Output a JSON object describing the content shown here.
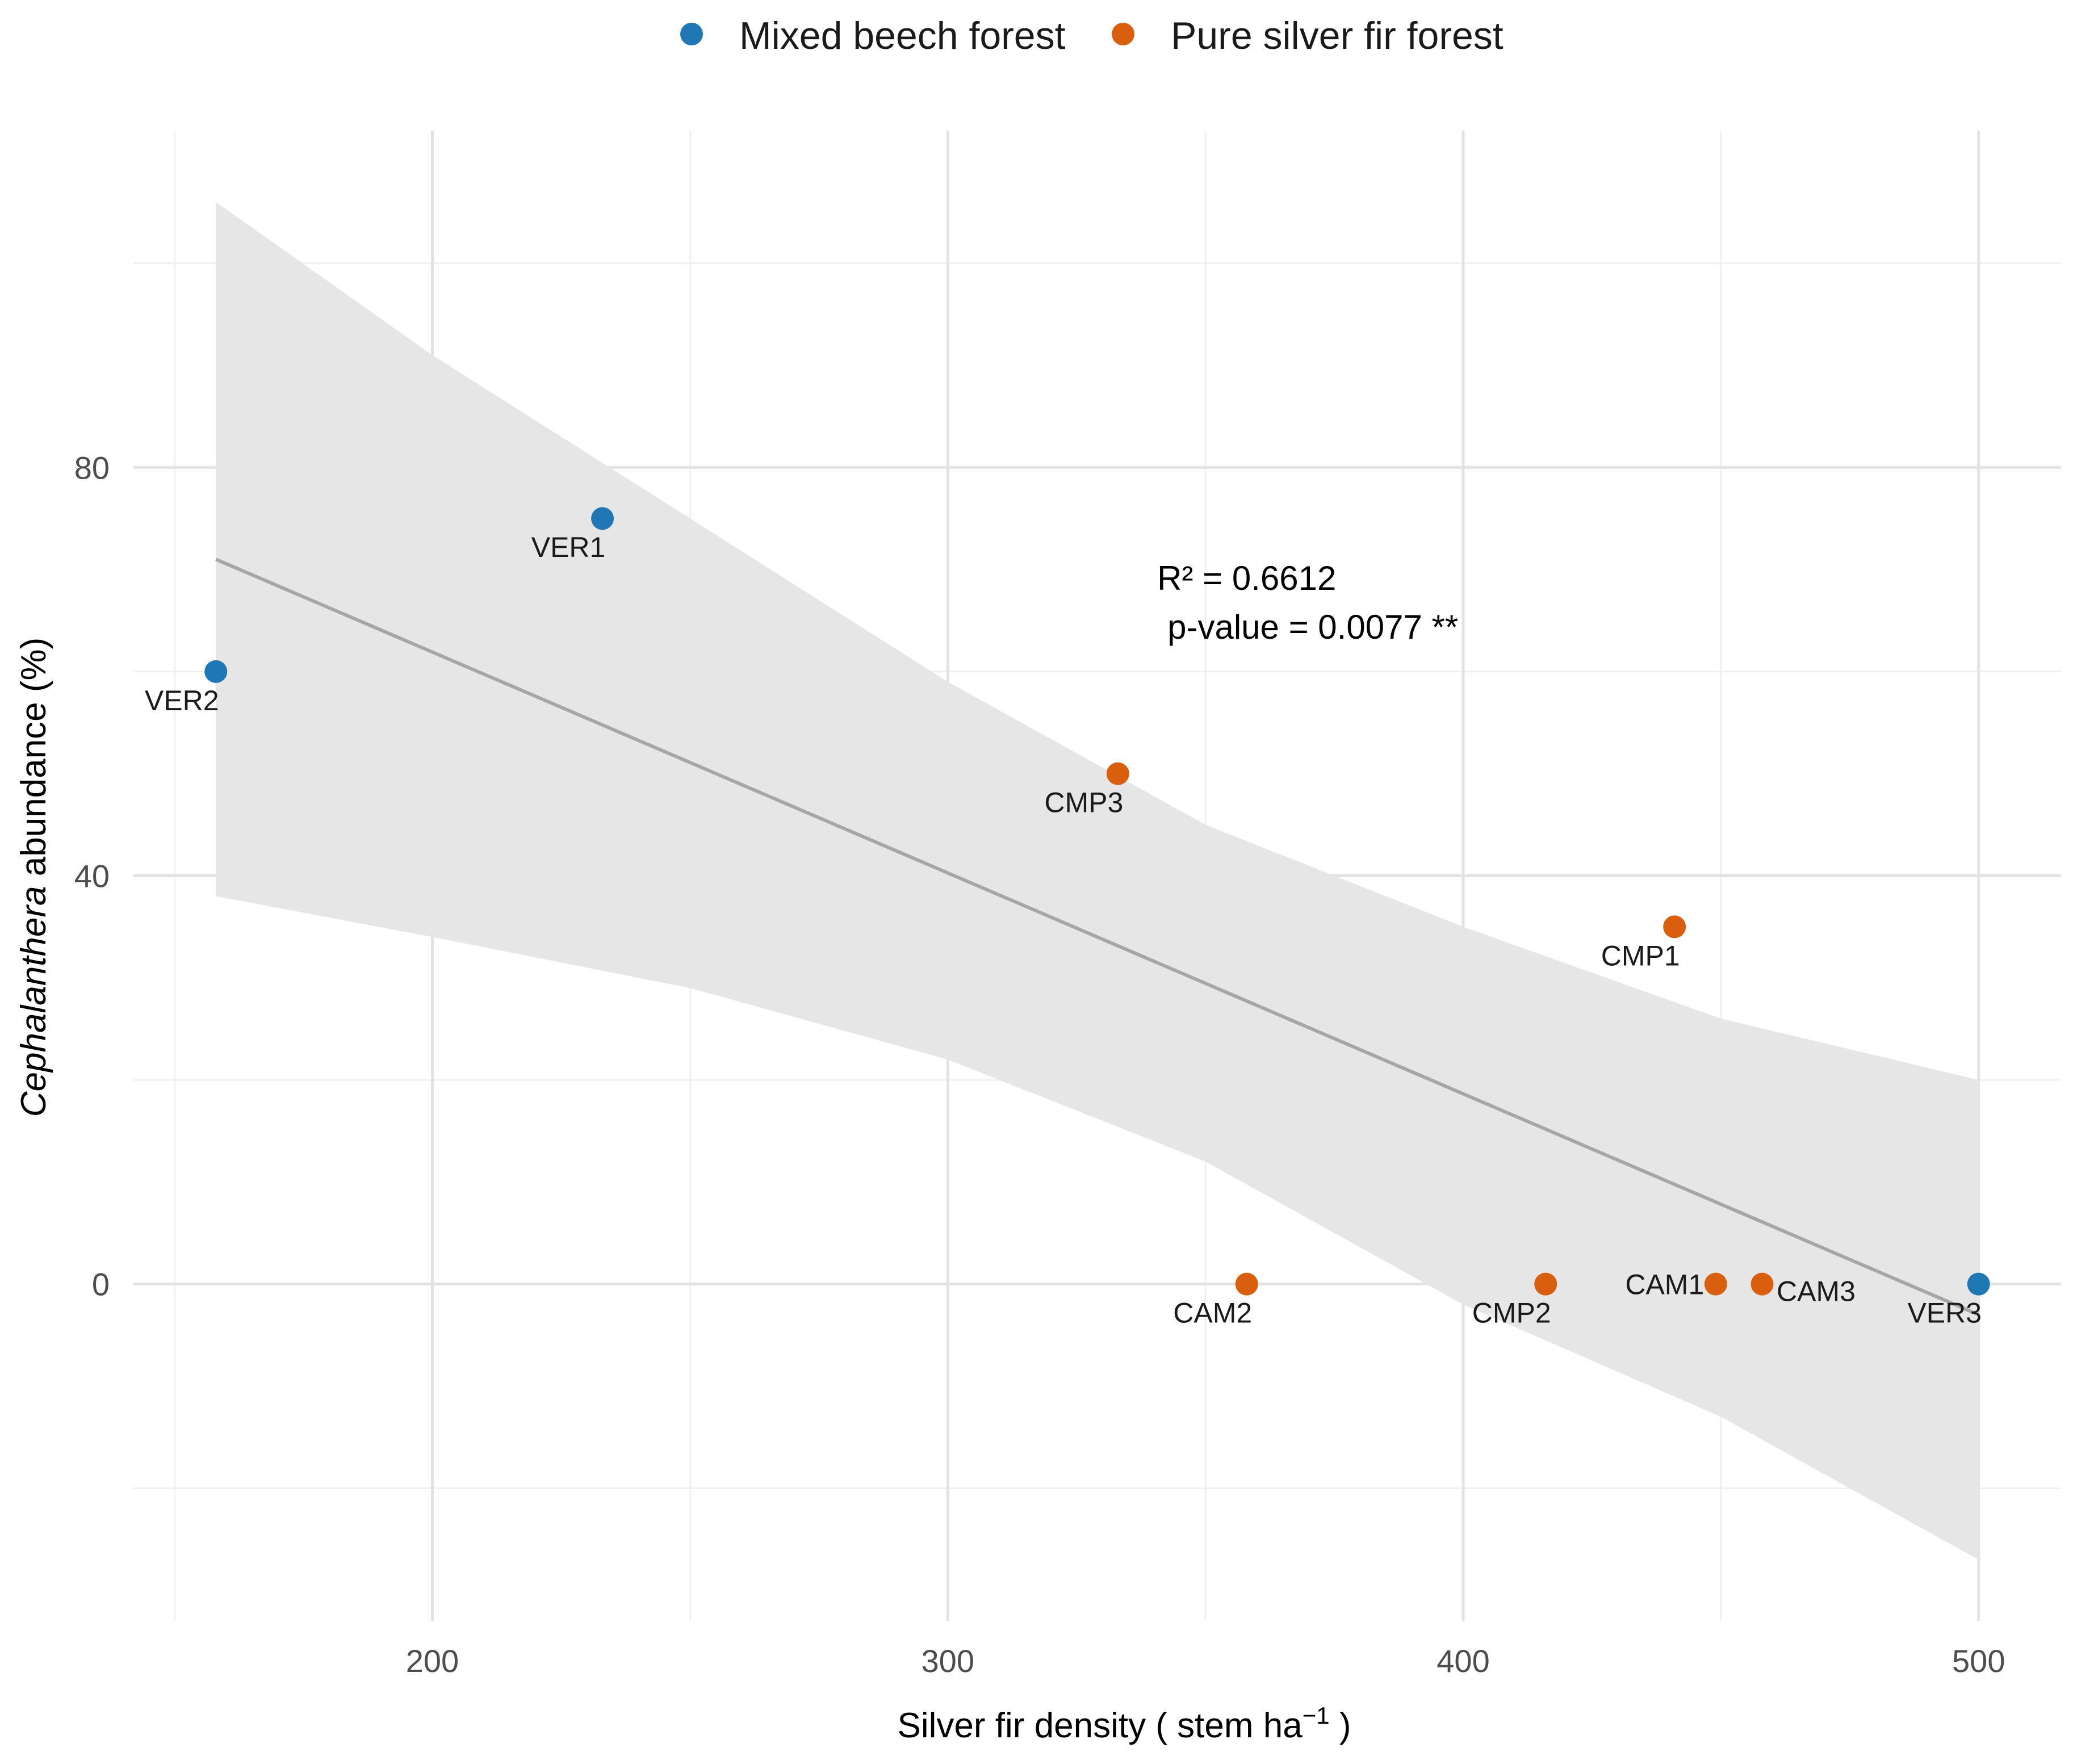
{
  "chart_data": {
    "type": "scatter",
    "xlabel": {
      "main": "Silver fir density ( stem ha",
      "sup": "−1",
      "tail": " )"
    },
    "ylabel": {
      "italic": "Cephalanthera",
      "rest": " abundance (%)"
    },
    "xlim": [
      142,
      516
    ],
    "ylim": [
      -33,
      113
    ],
    "x_ticks": [
      200,
      300,
      400,
      500
    ],
    "y_ticks": [
      0,
      40,
      80
    ],
    "x_minor": [
      150,
      250,
      350,
      450
    ],
    "y_minor": [
      -20,
      20,
      60,
      100
    ],
    "grid": true,
    "legend_position": "top",
    "series": [
      {
        "name": "Mixed beech forest",
        "color": "#1f78b4",
        "points": [
          {
            "label": "VER1",
            "x": 233,
            "y": 75
          },
          {
            "label": "VER2",
            "x": 158,
            "y": 60
          },
          {
            "label": "VER3",
            "x": 500,
            "y": 0
          }
        ]
      },
      {
        "name": "Pure silver fir forest",
        "color": "#d95f0e",
        "points": [
          {
            "label": "CMP3",
            "x": 333,
            "y": 50
          },
          {
            "label": "CMP1",
            "x": 441,
            "y": 35
          },
          {
            "label": "CAM2",
            "x": 358,
            "y": 0
          },
          {
            "label": "CMP2",
            "x": 416,
            "y": 0
          },
          {
            "label": "CAM1",
            "x": 449,
            "y": 0
          },
          {
            "label": "CAM3",
            "x": 458,
            "y": 0
          }
        ]
      }
    ],
    "fit_line": {
      "color": "#a6a6a6",
      "x": [
        158,
        500
      ],
      "y": [
        71,
        -3
      ]
    },
    "confidence_band": {
      "color": "#e6e6e6",
      "upper": [
        [
          158,
          106
        ],
        [
          200,
          91
        ],
        [
          250,
          75
        ],
        [
          300,
          59
        ],
        [
          350,
          45
        ],
        [
          400,
          35
        ],
        [
          450,
          26
        ],
        [
          500,
          20
        ]
      ],
      "lower": [
        [
          158,
          38
        ],
        [
          200,
          34
        ],
        [
          250,
          29
        ],
        [
          300,
          22
        ],
        [
          350,
          12
        ],
        [
          400,
          -2
        ],
        [
          450,
          -13
        ],
        [
          500,
          -27
        ]
      ]
    },
    "annotation": {
      "r2": "R² = 0.6612",
      "p_value": "p-value = 0.0077 **",
      "x": 350,
      "y": 68
    }
  }
}
